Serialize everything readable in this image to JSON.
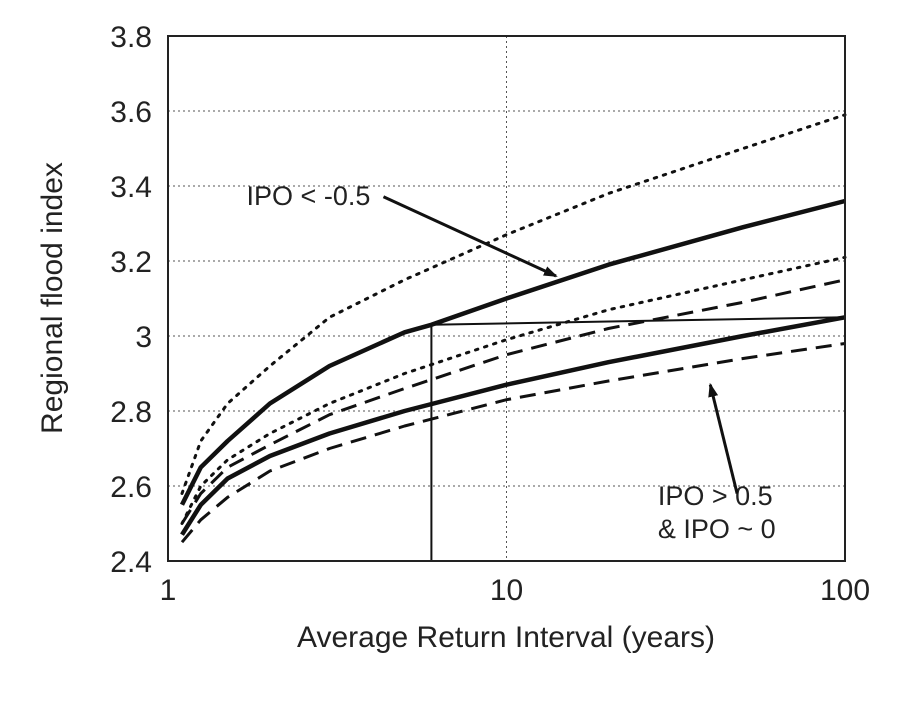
{
  "chart_data": {
    "type": "line",
    "xlabel": "Average Return Interval (years)",
    "ylabel": "Regional flood index",
    "xscale": "log",
    "xlim": [
      1,
      100
    ],
    "ylim": [
      2.4,
      3.8
    ],
    "x_ticks": [
      1,
      10,
      100
    ],
    "x_tick_labels": [
      "1",
      "10",
      "100"
    ],
    "y_ticks": [
      2.4,
      2.6,
      2.8,
      3.0,
      3.2,
      3.4,
      3.6,
      3.8
    ],
    "y_tick_labels": [
      "2.4",
      "2.6",
      "2.8",
      "3",
      "3.2",
      "3.4",
      "3.6",
      "3.8"
    ],
    "grid": true,
    "series": [
      {
        "group": "IPO < -0.5",
        "role": "estimate",
        "style": "solid-thick",
        "x": [
          1.1,
          1.25,
          1.5,
          2,
          3,
          5,
          6,
          10,
          20,
          50,
          100
        ],
        "y": [
          2.55,
          2.65,
          2.72,
          2.82,
          2.92,
          3.01,
          3.03,
          3.1,
          3.19,
          3.29,
          3.36
        ]
      },
      {
        "group": "IPO < -0.5",
        "role": "upper bound",
        "style": "dotted",
        "x": [
          1.1,
          1.25,
          1.5,
          2,
          3,
          5,
          10,
          20,
          50,
          100
        ],
        "y": [
          2.58,
          2.72,
          2.82,
          2.92,
          3.05,
          3.15,
          3.27,
          3.38,
          3.5,
          3.59
        ]
      },
      {
        "group": "IPO < -0.5",
        "role": "lower bound",
        "style": "dotted",
        "x": [
          1.1,
          1.25,
          1.5,
          2,
          3,
          5,
          10,
          20,
          50,
          100
        ],
        "y": [
          2.5,
          2.6,
          2.67,
          2.74,
          2.82,
          2.9,
          2.99,
          3.07,
          3.15,
          3.21
        ]
      },
      {
        "group": "IPO > 0.5 & IPO ~ 0",
        "role": "estimate",
        "style": "solid-thick",
        "x": [
          1.1,
          1.25,
          1.5,
          2,
          3,
          5,
          10,
          20,
          50,
          100
        ],
        "y": [
          2.47,
          2.55,
          2.62,
          2.68,
          2.74,
          2.8,
          2.87,
          2.93,
          3.0,
          3.05
        ]
      },
      {
        "group": "IPO > 0.5 & IPO ~ 0",
        "role": "upper bound",
        "style": "dashed",
        "x": [
          1.1,
          1.25,
          1.5,
          2,
          3,
          5,
          10,
          20,
          50,
          100
        ],
        "y": [
          2.5,
          2.58,
          2.65,
          2.71,
          2.79,
          2.86,
          2.95,
          3.02,
          3.09,
          3.15
        ]
      },
      {
        "group": "IPO > 0.5 & IPO ~ 0",
        "role": "lower bound",
        "style": "dashed",
        "x": [
          1.1,
          1.25,
          1.5,
          2,
          3,
          5,
          10,
          20,
          50,
          100
        ],
        "y": [
          2.45,
          2.51,
          2.57,
          2.64,
          2.7,
          2.76,
          2.83,
          2.88,
          2.94,
          2.98
        ]
      }
    ],
    "reference_lines": {
      "vertical_x": 6,
      "vertical_y_top": 3.03,
      "horizontal_y": 3.03,
      "horizontal_to_y": 3.05,
      "horizontal_x_end": 100
    },
    "annotations": [
      {
        "lines": [
          "IPO < -0.5"
        ],
        "text_x": 2.6,
        "text_y": 3.35,
        "arrow_to_x": 14,
        "arrow_to_y": 3.16
      },
      {
        "lines": [
          "IPO > 0.5",
          "& IPO ~ 0"
        ],
        "text_x": 28,
        "text_y": 2.55,
        "arrow_from_x": 48,
        "arrow_from_y": 2.58,
        "arrow_to_x": 40,
        "arrow_to_y": 2.87
      }
    ]
  }
}
